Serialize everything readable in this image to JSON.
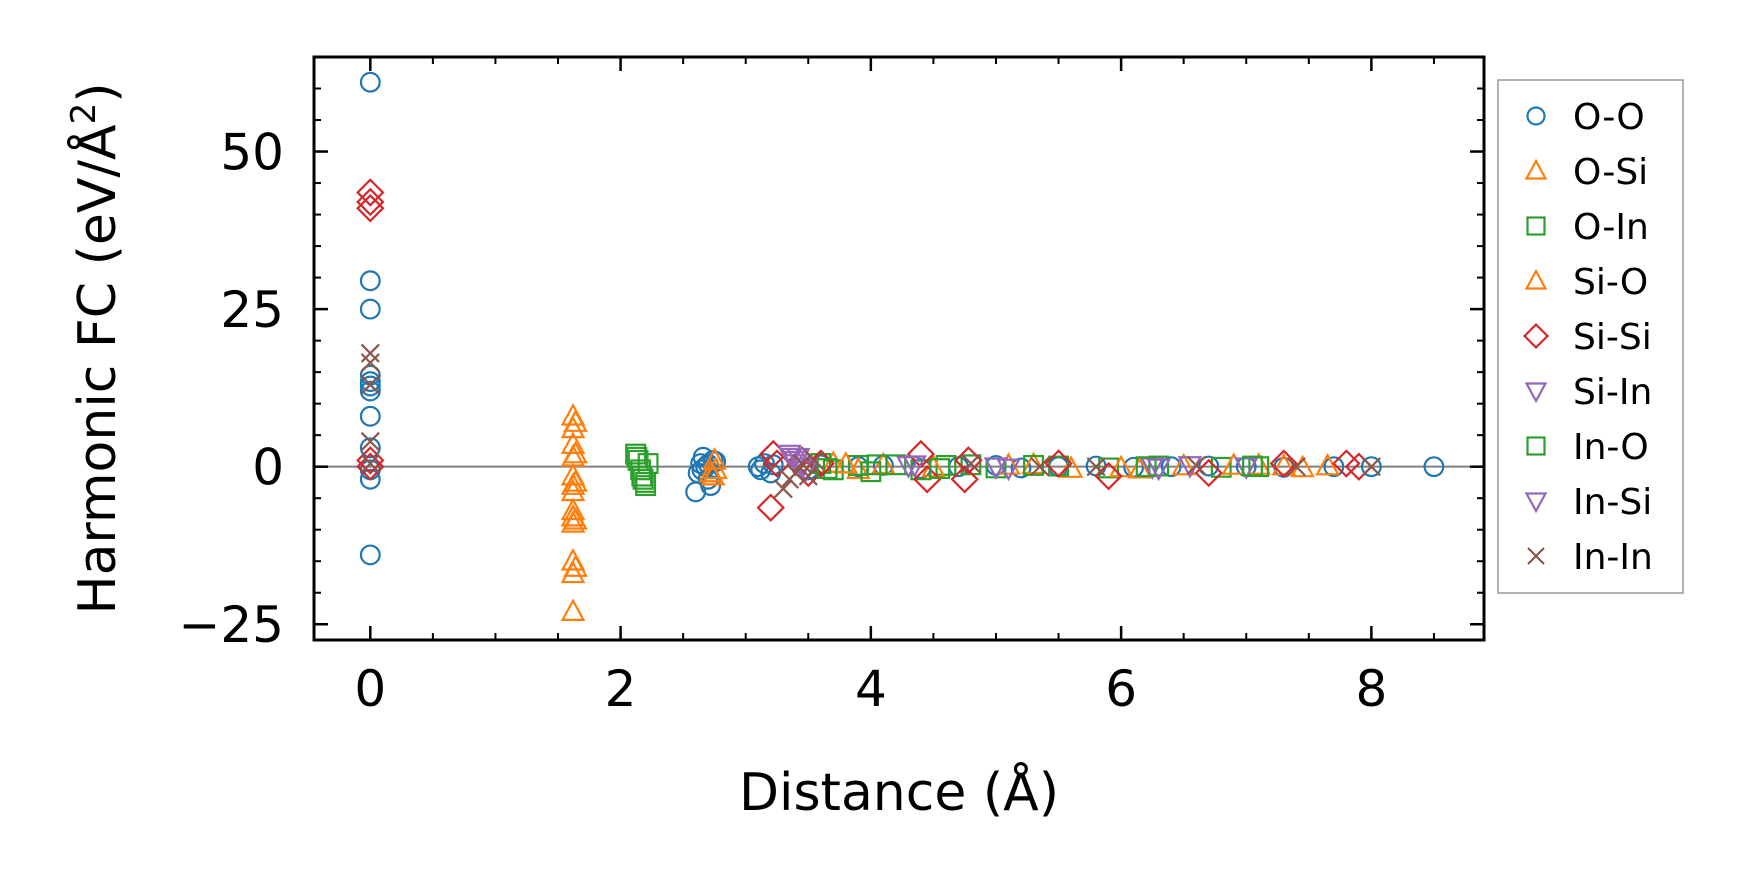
{
  "chart_data": {
    "type": "scatter",
    "xlabel": "Distance (Å)",
    "ylabel_main": "Harmonic FC (eV/Å",
    "ylabel_sup": "2",
    "ylabel_close": ")",
    "xlim": [
      -0.45,
      8.9
    ],
    "ylim": [
      -27.5,
      65
    ],
    "xticks": [
      0,
      2,
      4,
      6,
      8
    ],
    "xtick_labels": [
      "0",
      "2",
      "4",
      "6",
      "8"
    ],
    "yticks": [
      -25,
      0,
      25,
      50
    ],
    "ytick_labels": [
      "−25",
      "0",
      "25",
      "50"
    ],
    "zero_line": true,
    "grid": false,
    "legend_position": "outside-right",
    "series": [
      {
        "name": "O-O",
        "marker": "circle",
        "color": "#1f77b4",
        "points": [
          [
            0,
            61
          ],
          [
            0,
            29.5
          ],
          [
            0,
            25
          ],
          [
            0,
            14.5
          ],
          [
            0,
            13.5
          ],
          [
            0,
            12.8
          ],
          [
            0,
            12
          ],
          [
            0,
            8
          ],
          [
            0,
            3
          ],
          [
            0,
            -0.5
          ],
          [
            0,
            -2
          ],
          [
            0,
            -14
          ],
          [
            2.6,
            -4
          ],
          [
            2.62,
            -1
          ],
          [
            2.64,
            0.5
          ],
          [
            2.66,
            1.5
          ],
          [
            2.68,
            0
          ],
          [
            2.7,
            -2
          ],
          [
            2.72,
            -3
          ],
          [
            2.74,
            1
          ],
          [
            2.76,
            0.8
          ],
          [
            2.65,
            -0.5
          ],
          [
            2.7,
            0.4
          ],
          [
            3.1,
            0
          ],
          [
            3.12,
            -0.5
          ],
          [
            3.15,
            0.5
          ],
          [
            3.2,
            -1
          ],
          [
            3.22,
            0.3
          ],
          [
            3.5,
            -0.5
          ],
          [
            3.6,
            0.3
          ],
          [
            3.9,
            0
          ],
          [
            4.1,
            0.2
          ],
          [
            4.4,
            -0.3
          ],
          [
            4.7,
            0
          ],
          [
            5.0,
            0.2
          ],
          [
            5.2,
            -0.2
          ],
          [
            5.5,
            0
          ],
          [
            5.8,
            0.1
          ],
          [
            6.1,
            -0.1
          ],
          [
            6.4,
            0
          ],
          [
            6.7,
            0.1
          ],
          [
            7.0,
            0
          ],
          [
            7.3,
            -0.1
          ],
          [
            7.7,
            0
          ],
          [
            8.0,
            0
          ],
          [
            8.5,
            0
          ]
        ]
      },
      {
        "name": "O-Si",
        "marker": "triangle-up",
        "color": "#ff7f0e",
        "points": [
          [
            1.62,
            8
          ],
          [
            1.62,
            6
          ],
          [
            1.62,
            3.5
          ],
          [
            1.62,
            1.5
          ],
          [
            1.62,
            -1.5
          ],
          [
            1.62,
            -3
          ],
          [
            1.62,
            -4
          ],
          [
            1.62,
            -7
          ],
          [
            1.62,
            -8
          ],
          [
            1.62,
            -9
          ],
          [
            1.62,
            -15
          ],
          [
            1.62,
            -17
          ],
          [
            1.62,
            -23
          ],
          [
            2.75,
            1
          ],
          [
            2.76,
            -0.5
          ],
          [
            2.74,
            -1.5
          ],
          [
            3.7,
            0.5
          ],
          [
            3.9,
            -0.5
          ],
          [
            4.1,
            0.3
          ],
          [
            5.1,
            0.2
          ],
          [
            5.6,
            -0.3
          ],
          [
            6.15,
            -0.4
          ],
          [
            6.5,
            0.1
          ],
          [
            7.1,
            0.2
          ],
          [
            7.45,
            -0.2
          ],
          [
            7.65,
            0.1
          ]
        ]
      },
      {
        "name": "O-In",
        "marker": "square",
        "color": "#2ca02c",
        "points": [
          [
            2.12,
            2
          ],
          [
            2.14,
            1
          ],
          [
            2.16,
            -0.5
          ],
          [
            2.18,
            -2
          ],
          [
            2.2,
            -3
          ],
          [
            2.22,
            0.5
          ],
          [
            3.6,
            0.5
          ],
          [
            3.7,
            -0.5
          ],
          [
            3.9,
            0.2
          ],
          [
            4.0,
            -0.8
          ],
          [
            4.2,
            0.3
          ],
          [
            4.4,
            -0.5
          ],
          [
            4.6,
            0.2
          ],
          [
            4.8,
            0.3
          ],
          [
            5.0,
            -0.2
          ],
          [
            5.5,
            0.1
          ],
          [
            5.9,
            -0.2
          ],
          [
            6.3,
            0.1
          ],
          [
            6.8,
            -0.1
          ],
          [
            7.1,
            0
          ]
        ]
      },
      {
        "name": "Si-O",
        "marker": "triangle-up",
        "color": "#ff7f0e",
        "points": [
          [
            1.64,
            7
          ],
          [
            1.64,
            2
          ],
          [
            1.64,
            -2.5
          ],
          [
            1.64,
            -8.5
          ],
          [
            1.64,
            -16
          ],
          [
            2.72,
            -1
          ],
          [
            3.8,
            0.4
          ],
          [
            4.5,
            -0.2
          ],
          [
            5.3,
            0.3
          ],
          [
            6.0,
            -0.2
          ],
          [
            6.9,
            0.2
          ],
          [
            7.3,
            0.1
          ]
        ]
      },
      {
        "name": "Si-Si",
        "marker": "diamond",
        "color": "#d62728",
        "points": [
          [
            0,
            43.5
          ],
          [
            0,
            42
          ],
          [
            0,
            41
          ],
          [
            0,
            1
          ],
          [
            0,
            0
          ],
          [
            3.2,
            -6.5
          ],
          [
            3.22,
            2
          ],
          [
            3.25,
            0.5
          ],
          [
            3.45,
            1
          ],
          [
            3.5,
            -1
          ],
          [
            3.6,
            0.5
          ],
          [
            4.4,
            2
          ],
          [
            4.45,
            -2
          ],
          [
            4.75,
            -2
          ],
          [
            4.78,
            1
          ],
          [
            5.5,
            0.5
          ],
          [
            5.9,
            -1.5
          ],
          [
            6.7,
            -1
          ],
          [
            7.3,
            0.5
          ],
          [
            7.8,
            0.5
          ],
          [
            7.9,
            0
          ]
        ]
      },
      {
        "name": "Si-In",
        "marker": "triangle-down",
        "color": "#9467bd",
        "points": [
          [
            3.35,
            2
          ],
          [
            3.38,
            1
          ],
          [
            3.42,
            1.5
          ],
          [
            3.45,
            0
          ],
          [
            4.35,
            0.3
          ],
          [
            5.1,
            -0.2
          ],
          [
            6.25,
            0
          ],
          [
            6.55,
            0.2
          ],
          [
            7.0,
            0
          ]
        ]
      },
      {
        "name": "In-O",
        "marker": "square",
        "color": "#2ca02c",
        "points": [
          [
            2.13,
            1.5
          ],
          [
            2.17,
            -1.5
          ],
          [
            2.2,
            -2.5
          ],
          [
            3.65,
            -0.3
          ],
          [
            4.05,
            0.3
          ],
          [
            4.55,
            -0.3
          ],
          [
            5.3,
            0.2
          ],
          [
            6.2,
            0
          ],
          [
            7.05,
            0.1
          ]
        ]
      },
      {
        "name": "In-Si",
        "marker": "triangle-down",
        "color": "#9467bd",
        "points": [
          [
            3.36,
            1.5
          ],
          [
            3.4,
            0.5
          ],
          [
            3.48,
            -0.5
          ],
          [
            4.3,
            0.2
          ],
          [
            5.0,
            0
          ],
          [
            6.3,
            -0.2
          ]
        ]
      },
      {
        "name": "In-In",
        "marker": "x",
        "color": "#8c564b",
        "points": [
          [
            0,
            18
          ],
          [
            0,
            16.5
          ],
          [
            0,
            13
          ],
          [
            0,
            4
          ],
          [
            0,
            0.5
          ],
          [
            3.3,
            -3.5
          ],
          [
            3.35,
            -2
          ],
          [
            3.4,
            -1
          ],
          [
            3.45,
            0.5
          ],
          [
            3.5,
            -1.5
          ],
          [
            3.55,
            1
          ],
          [
            4.8,
            0.5
          ],
          [
            5.35,
            0
          ],
          [
            5.8,
            0
          ],
          [
            6.6,
            0.2
          ],
          [
            7.4,
            0
          ],
          [
            8.0,
            0
          ]
        ]
      }
    ]
  }
}
